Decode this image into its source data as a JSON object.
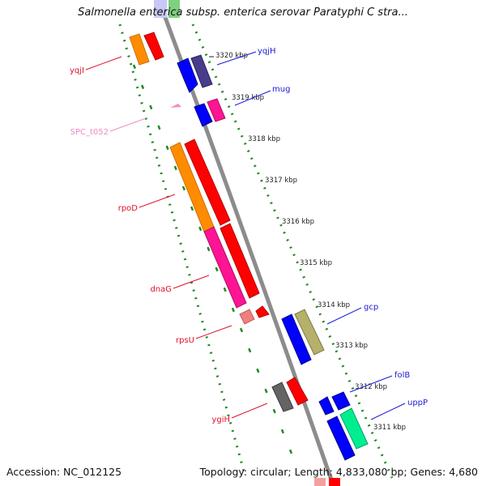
{
  "title": "Salmonella enterica subsp. enterica serovar Paratyphi C stra...",
  "accession": "Accession: NC_012125",
  "summary": "Topology: circular; Length: 4,833,080 bp; Genes: 4,680",
  "colors": {
    "backbone": "#8c8c8c",
    "track_dots": "#1f8a1f",
    "tick_text": "#222222"
  },
  "ticks": [
    "3320 kbp",
    "3319 kbp",
    "3318 kbp",
    "3317 kbp",
    "3316 kbp",
    "3315 kbp",
    "3314 kbp",
    "3313 kbp",
    "3312 kbp",
    "3311 kbp"
  ],
  "genes": {
    "yqjH": {
      "label": "yqjH",
      "color": "#1a1ad6"
    },
    "mug": {
      "label": "mug",
      "color": "#1a1ad6"
    },
    "gcp": {
      "label": "gcp",
      "color": "#1a1ad6"
    },
    "folB": {
      "label": "folB",
      "color": "#1a1ad6"
    },
    "uppP": {
      "label": "uppP",
      "color": "#1a1ad6"
    },
    "yqjI": {
      "label": "yqjI",
      "color": "#e0102a"
    },
    "SPC_t052": {
      "label": "SPC_t052",
      "color": "#f08cc8"
    },
    "rpoD": {
      "label": "rpoD",
      "color": "#e0102a"
    },
    "dnaG": {
      "label": "dnaG",
      "color": "#e0102a"
    },
    "rpsU": {
      "label": "rpsU",
      "color": "#e0102a"
    },
    "ygiH": {
      "label": "ygiH",
      "color": "#e0102a"
    }
  }
}
